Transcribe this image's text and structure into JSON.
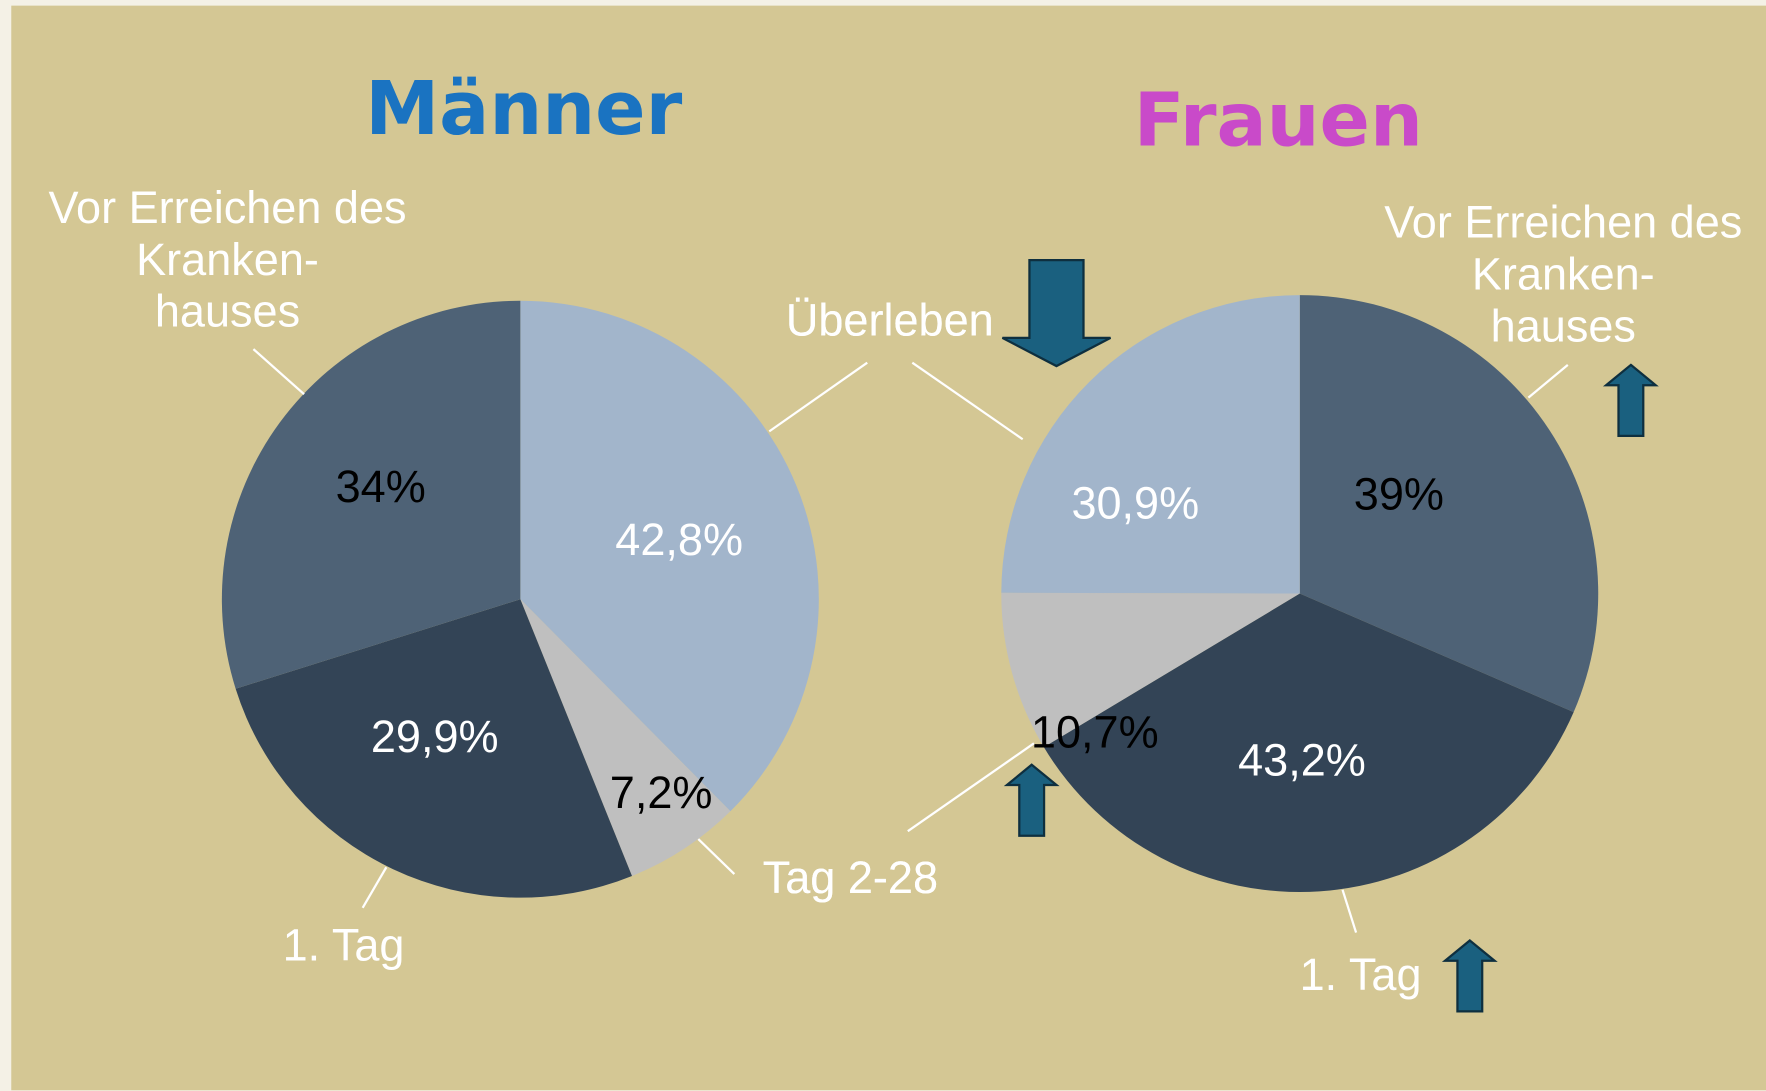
{
  "chart_data": [
    {
      "type": "pie",
      "title": "Männer",
      "categories": [
        "Überleben",
        "Tag 2-28",
        "1. Tag",
        "Vor Erreichen des\nKranken-\nhauses"
      ],
      "values": [
        42.8,
        7.2,
        29.9,
        34
      ],
      "value_labels": [
        "42,8%",
        "7,2%",
        "29,9%",
        "34%"
      ],
      "colors": [
        "#a2b5cb",
        "#bfbfbf",
        "#334456",
        "#4e6276"
      ],
      "label_colors": [
        "#ffffff",
        "#000000",
        "#ffffff",
        "#000000"
      ],
      "title_color": "#1a73c1"
    },
    {
      "type": "pie",
      "title": "Frauen",
      "categories": [
        "Vor Erreichen des\nKranken-\nhauses",
        "1. Tag",
        "Tag 2-28",
        "Überleben"
      ],
      "values": [
        39,
        43.2,
        10.7,
        30.9
      ],
      "value_labels": [
        "39%",
        "43,2%",
        "10,7%",
        "30,9%"
      ],
      "colors": [
        "#4e6276",
        "#334456",
        "#bfbfbf",
        "#a2b5cb"
      ],
      "label_colors": [
        "#000000",
        "#ffffff",
        "#000000",
        "#ffffff"
      ],
      "title_color": "#c94ac9"
    }
  ]
}
